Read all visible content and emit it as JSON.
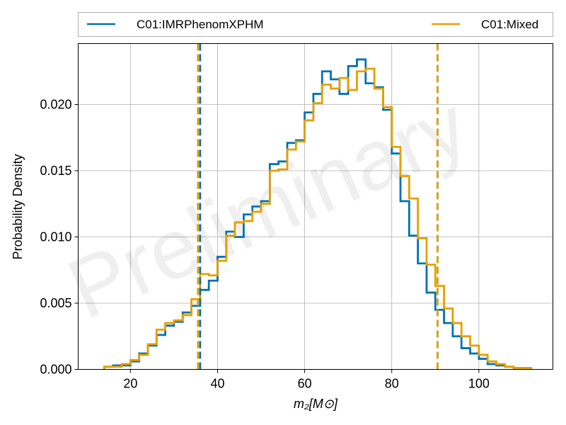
{
  "chart_data": {
    "type": "line",
    "subtype": "step-histogram",
    "title": "",
    "xlabel": "m₂[M⊙]",
    "ylabel": "Probability Density",
    "xlim": [
      8,
      117
    ],
    "ylim": [
      0,
      0.0246
    ],
    "xticks": [
      20,
      40,
      60,
      80,
      100
    ],
    "xtick_labels": [
      "20",
      "40",
      "60",
      "80",
      "100"
    ],
    "yticks": [
      0,
      0.005,
      0.01,
      0.015,
      0.02
    ],
    "ytick_labels": [
      "0.000",
      "0.005",
      "0.010",
      "0.015",
      "0.020"
    ],
    "grid": true,
    "legend_placement": "top, above plot",
    "watermark": "Preliminary",
    "series": [
      {
        "name": "C01:IMRPhenomXPHM",
        "color": "#0072b2",
        "bin_edges": [
          14,
          16,
          18,
          20,
          22,
          24,
          26,
          28,
          30,
          32,
          34,
          36,
          38,
          40,
          42,
          44,
          46,
          48,
          50,
          52,
          54,
          56,
          58,
          60,
          62,
          64,
          66,
          68,
          70,
          72,
          74,
          76,
          78,
          80,
          82,
          84,
          86,
          88,
          90,
          92,
          94,
          96,
          98,
          100,
          102,
          104,
          106,
          108,
          110,
          112
        ],
        "values": [
          0.0002,
          0.0003,
          0.0003,
          0.0006,
          0.0012,
          0.0018,
          0.0026,
          0.0033,
          0.0036,
          0.0043,
          0.0048,
          0.006,
          0.0067,
          0.0085,
          0.0104,
          0.01,
          0.0117,
          0.0123,
          0.0127,
          0.0155,
          0.0157,
          0.0171,
          0.0173,
          0.0194,
          0.0208,
          0.0225,
          0.0219,
          0.0208,
          0.0229,
          0.0234,
          0.0216,
          0.0213,
          0.0196,
          0.0163,
          0.0127,
          0.0101,
          0.008,
          0.0058,
          0.0045,
          0.0035,
          0.0025,
          0.0016,
          0.0012,
          0.0008,
          0.0004,
          0.0003,
          0.0002,
          0.0001,
          0.0001
        ],
        "interval_bounds": [
          36,
          90.5
        ]
      },
      {
        "name": "C01:Mixed",
        "color": "#e69f00",
        "bin_edges": [
          14,
          16,
          18,
          20,
          22,
          24,
          26,
          28,
          30,
          32,
          34,
          36,
          38,
          40,
          42,
          44,
          46,
          48,
          50,
          52,
          54,
          56,
          58,
          60,
          62,
          64,
          66,
          68,
          70,
          72,
          74,
          76,
          78,
          80,
          82,
          84,
          86,
          88,
          90,
          92,
          94,
          96,
          98,
          100,
          102,
          104,
          106,
          108,
          110,
          112
        ],
        "values": [
          0.0002,
          0.0002,
          0.0004,
          0.0007,
          0.0011,
          0.0019,
          0.003,
          0.0035,
          0.0037,
          0.0041,
          0.0053,
          0.0072,
          0.0071,
          0.0082,
          0.0101,
          0.0111,
          0.0112,
          0.0119,
          0.0125,
          0.015,
          0.0151,
          0.0166,
          0.0172,
          0.0188,
          0.0201,
          0.0215,
          0.0212,
          0.022,
          0.0211,
          0.0225,
          0.0227,
          0.0212,
          0.0198,
          0.0168,
          0.0146,
          0.0129,
          0.0099,
          0.0079,
          0.0063,
          0.0046,
          0.0035,
          0.0025,
          0.0018,
          0.0011,
          0.0006,
          0.0004,
          0.0002,
          0.0001,
          0.0001
        ],
        "interval_bounds": [
          35.5,
          90.5
        ]
      }
    ]
  }
}
